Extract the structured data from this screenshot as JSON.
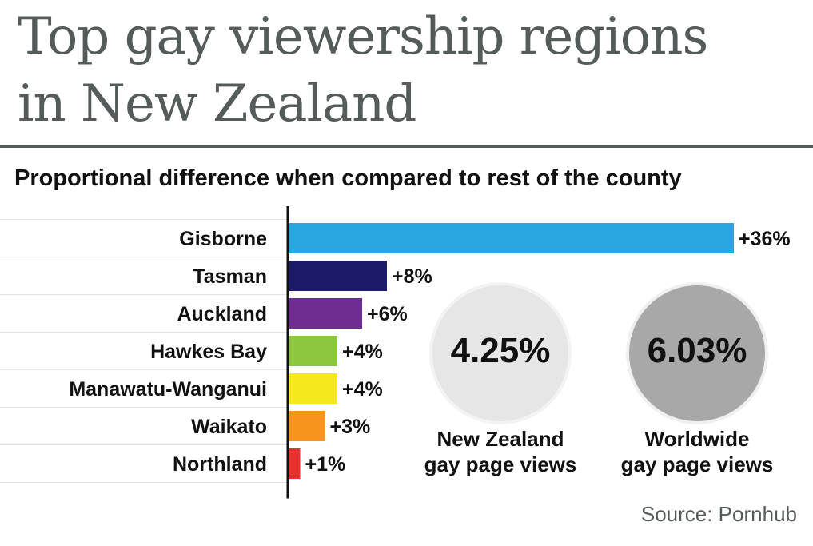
{
  "header": {
    "title_line1": "Top gay viewership regions",
    "title_line2": "in New Zealand",
    "subtitle": "Proportional difference when compared to rest of the county"
  },
  "chart_data": {
    "type": "bar",
    "orientation": "horizontal",
    "title": "Top gay viewership regions in New Zealand",
    "subtitle": "Proportional difference when compared to rest of the county",
    "categories": [
      "Gisborne",
      "Tasman",
      "Auckland",
      "Hawkes Bay",
      "Manawatu-Wanganui",
      "Waikato",
      "Northland"
    ],
    "values": [
      36,
      8,
      6,
      4,
      4,
      3,
      1
    ],
    "value_labels": [
      "+36%",
      "+8%",
      "+6%",
      "+4%",
      "+4%",
      "+3%",
      "+1%"
    ],
    "colors": [
      "#29a8e0",
      "#1c1a66",
      "#6f2c91",
      "#8cc63f",
      "#f7e81c",
      "#f7941d",
      "#e8322f"
    ],
    "unit": "%",
    "xlim": [
      0,
      36
    ],
    "grid": false,
    "legend": "none"
  },
  "stats": {
    "new_zealand": {
      "value": "4.25%",
      "label_line1": "New Zealand",
      "label_line2": "gay page views",
      "color": "#e6e6e6"
    },
    "worldwide": {
      "value": "6.03%",
      "label_line1": "Worldwide",
      "label_line2": "gay page views",
      "color": "#a8a8a8"
    }
  },
  "footer": {
    "source": "Source: Pornhub"
  }
}
